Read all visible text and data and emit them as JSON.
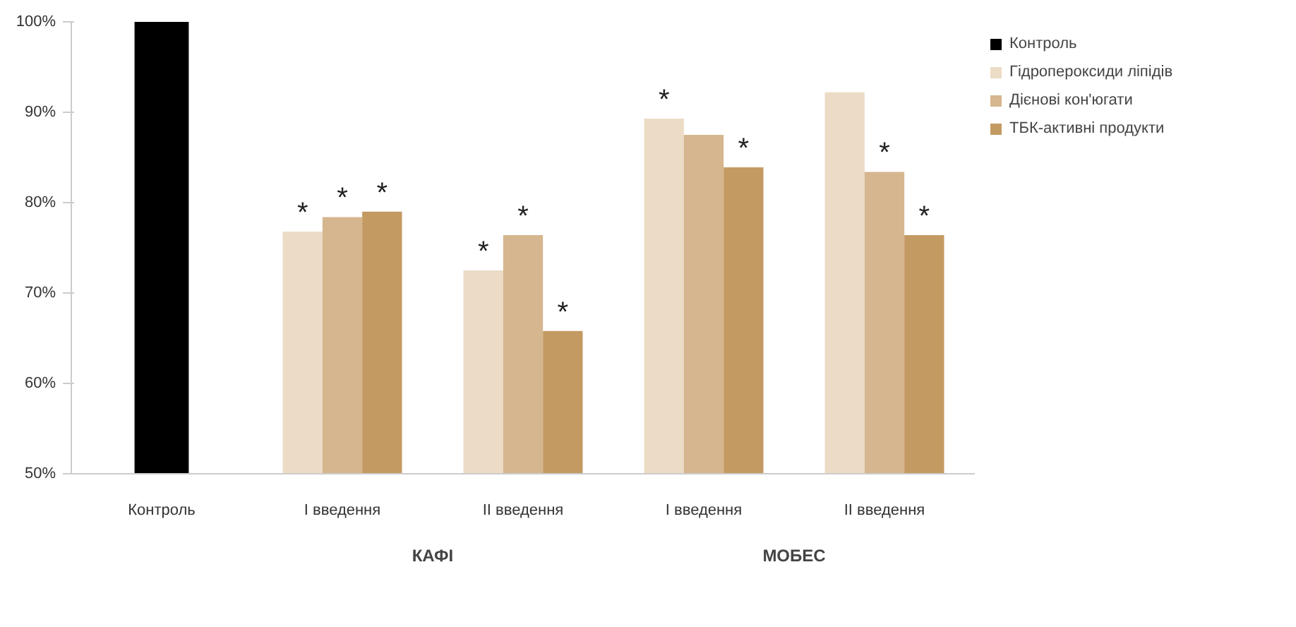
{
  "chart_data": {
    "type": "bar",
    "categories": [
      "Контроль",
      "I введення",
      "II введення",
      "I введення",
      "II введення"
    ],
    "series": [
      {
        "name": "Контроль",
        "color": "#000000",
        "values": [
          100,
          null,
          null,
          null,
          null
        ]
      },
      {
        "name": "Гідропероксиди ліпідів",
        "color": "#ecdcc6",
        "values": [
          null,
          76.8,
          72.5,
          89.3,
          92.2
        ],
        "value_labels": [
          null,
          "*",
          "*",
          "*",
          null
        ]
      },
      {
        "name": "Дієнові кон'югати",
        "color": "#d5b68e",
        "values": [
          null,
          78.4,
          76.4,
          87.5,
          83.4
        ],
        "value_labels": [
          null,
          "*",
          "*",
          null,
          "*"
        ]
      },
      {
        "name": "ТБК-активні продукти",
        "color": "#c49a63",
        "values": [
          null,
          79.0,
          65.8,
          83.9,
          76.4
        ],
        "value_labels": [
          null,
          "*",
          "*",
          "*",
          "*"
        ]
      }
    ],
    "ylim": [
      50,
      100
    ],
    "yticks": [
      {
        "value": 50,
        "label": "50%"
      },
      {
        "value": 60,
        "label": "60%"
      },
      {
        "value": 70,
        "label": "70%"
      },
      {
        "value": 80,
        "label": "80%"
      },
      {
        "value": 90,
        "label": "90%"
      },
      {
        "value": 100,
        "label": "100%"
      }
    ],
    "annotations": [
      "КАФІ",
      "МОБЕС"
    ],
    "grid": false,
    "legend": "right"
  }
}
